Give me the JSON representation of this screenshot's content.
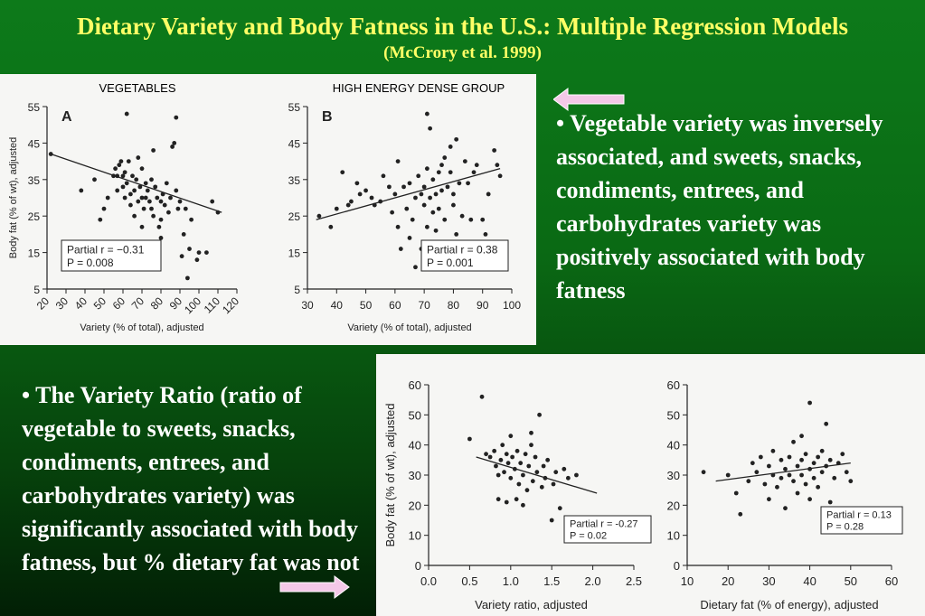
{
  "header": {
    "title": "Dietary Variety and Body Fatness in the U.S.: Multiple Regression Models",
    "subtitle": "(McCrory et al. 1999)"
  },
  "bullets": {
    "vegetable": "• Vegetable variety was inversely associated, and sweets, snacks, condiments, entrees, and carbohydrates variety was positively associated with body fatness",
    "ratio": "• The Variety Ratio (ratio of vegetable to sweets, snacks, condiments, entrees, and carbohydrates variety) was significantly associated with body fatness, but % dietary fat was not"
  },
  "colors": {
    "title": "#ffff66",
    "arrow": "#f4c8e8",
    "text": "#ffffff"
  },
  "chart_data": [
    {
      "id": "A",
      "type": "scatter",
      "title": "VEGETABLES",
      "panel_letter": "A",
      "xlabel": "Variety (% of total), adjusted",
      "ylabel": "Body fat (% of wt), adjusted",
      "xlim": [
        20,
        120
      ],
      "ylim": [
        5,
        55
      ],
      "xticks": [
        20,
        30,
        40,
        50,
        60,
        70,
        80,
        90,
        100,
        110,
        120
      ],
      "yticks": [
        5,
        15,
        25,
        35,
        45,
        55
      ],
      "annotation": {
        "r_label": "Partial r = −0.31",
        "p_label": "P = 0.008"
      },
      "line": [
        [
          22,
          42
        ],
        [
          112,
          26
        ]
      ],
      "points": [
        [
          22,
          42
        ],
        [
          38,
          32
        ],
        [
          45,
          35
        ],
        [
          48,
          24
        ],
        [
          50,
          27
        ],
        [
          52,
          30
        ],
        [
          55,
          36
        ],
        [
          56,
          38
        ],
        [
          57,
          32
        ],
        [
          57,
          36
        ],
        [
          58,
          39
        ],
        [
          59,
          40
        ],
        [
          60,
          36
        ],
        [
          60,
          33
        ],
        [
          61,
          30
        ],
        [
          61,
          37
        ],
        [
          62,
          34
        ],
        [
          63,
          40
        ],
        [
          64,
          31
        ],
        [
          64,
          28
        ],
        [
          65,
          36
        ],
        [
          66,
          32
        ],
        [
          66,
          25
        ],
        [
          67,
          35
        ],
        [
          68,
          41
        ],
        [
          68,
          29
        ],
        [
          69,
          33
        ],
        [
          70,
          30
        ],
        [
          70,
          38
        ],
        [
          71,
          27
        ],
        [
          72,
          34
        ],
        [
          72,
          30
        ],
        [
          73,
          32
        ],
        [
          74,
          29
        ],
        [
          75,
          35
        ],
        [
          75,
          27
        ],
        [
          76,
          25
        ],
        [
          77,
          33
        ],
        [
          78,
          30
        ],
        [
          79,
          22
        ],
        [
          80,
          29
        ],
        [
          80,
          24
        ],
        [
          81,
          31
        ],
        [
          82,
          28
        ],
        [
          83,
          34
        ],
        [
          84,
          26
        ],
        [
          85,
          30
        ],
        [
          86,
          44
        ],
        [
          87,
          45
        ],
        [
          88,
          32
        ],
        [
          89,
          27
        ],
        [
          90,
          29
        ],
        [
          91,
          14
        ],
        [
          92,
          20
        ],
        [
          93,
          27
        ],
        [
          94,
          8
        ],
        [
          95,
          16
        ],
        [
          96,
          24
        ],
        [
          99,
          13
        ],
        [
          100,
          15
        ],
        [
          104,
          15
        ],
        [
          107,
          29
        ],
        [
          110,
          26
        ],
        [
          62,
          53
        ],
        [
          88,
          52
        ],
        [
          76,
          43
        ],
        [
          70,
          22
        ],
        [
          80,
          19
        ]
      ]
    },
    {
      "id": "B",
      "type": "scatter",
      "title": "HIGH ENERGY DENSE GROUP",
      "panel_letter": "B",
      "xlabel": "Variety (% of total), adjusted",
      "ylabel": "",
      "xlim": [
        30,
        100
      ],
      "ylim": [
        5,
        55
      ],
      "xticks": [
        30,
        40,
        50,
        60,
        70,
        80,
        90,
        100
      ],
      "yticks": [
        5,
        15,
        25,
        35,
        45,
        55
      ],
      "annotation": {
        "r_label": "Partial r = 0.38",
        "p_label": "P = 0.001"
      },
      "line": [
        [
          33,
          24
        ],
        [
          96,
          38
        ]
      ],
      "points": [
        [
          34,
          25
        ],
        [
          38,
          22
        ],
        [
          40,
          27
        ],
        [
          42,
          37
        ],
        [
          44,
          28
        ],
        [
          45,
          29
        ],
        [
          47,
          34
        ],
        [
          48,
          31
        ],
        [
          50,
          32
        ],
        [
          52,
          30
        ],
        [
          53,
          28
        ],
        [
          55,
          29
        ],
        [
          56,
          36
        ],
        [
          58,
          33
        ],
        [
          59,
          26
        ],
        [
          60,
          31
        ],
        [
          61,
          40
        ],
        [
          61,
          22
        ],
        [
          62,
          16
        ],
        [
          63,
          33
        ],
        [
          64,
          27
        ],
        [
          65,
          34
        ],
        [
          65,
          19
        ],
        [
          66,
          24
        ],
        [
          67,
          30
        ],
        [
          67,
          11
        ],
        [
          68,
          36
        ],
        [
          69,
          31
        ],
        [
          69,
          16
        ],
        [
          70,
          28
        ],
        [
          70,
          33
        ],
        [
          71,
          22
        ],
        [
          71,
          38
        ],
        [
          72,
          30
        ],
        [
          72,
          49
        ],
        [
          73,
          35
        ],
        [
          73,
          26
        ],
        [
          74,
          31
        ],
        [
          74,
          21
        ],
        [
          75,
          37
        ],
        [
          75,
          27
        ],
        [
          76,
          32
        ],
        [
          76,
          39
        ],
        [
          77,
          24
        ],
        [
          77,
          41
        ],
        [
          78,
          33
        ],
        [
          78,
          17
        ],
        [
          79,
          44
        ],
        [
          79,
          37
        ],
        [
          80,
          28
        ],
        [
          80,
          31
        ],
        [
          81,
          46
        ],
        [
          81,
          20
        ],
        [
          82,
          34
        ],
        [
          83,
          25
        ],
        [
          84,
          40
        ],
        [
          85,
          34
        ],
        [
          86,
          24
        ],
        [
          87,
          37
        ],
        [
          88,
          14
        ],
        [
          88,
          39
        ],
        [
          90,
          24
        ],
        [
          91,
          20
        ],
        [
          92,
          31
        ],
        [
          94,
          43
        ],
        [
          95,
          39
        ],
        [
          96,
          36
        ],
        [
          71,
          53
        ]
      ]
    },
    {
      "id": "ratio",
      "type": "scatter",
      "xlabel": "Variety ratio, adjusted",
      "ylabel": "Body fat (% of wt), adjusted",
      "xlim": [
        0.0,
        2.5
      ],
      "ylim": [
        0,
        60
      ],
      "xticks": [
        "0.0",
        "0.5",
        "1.0",
        "1.5",
        "2.0",
        "2.5"
      ],
      "yticks": [
        0,
        10,
        20,
        30,
        40,
        50,
        60
      ],
      "annotation": {
        "r_label": "Partial r = -0.27",
        "p_label": "P = 0.02"
      },
      "line": [
        [
          0.58,
          36
        ],
        [
          2.05,
          24
        ]
      ],
      "points": [
        [
          0.5,
          42
        ],
        [
          0.65,
          56
        ],
        [
          0.7,
          37
        ],
        [
          0.75,
          36
        ],
        [
          0.8,
          38
        ],
        [
          0.82,
          33
        ],
        [
          0.85,
          30
        ],
        [
          0.88,
          35
        ],
        [
          0.9,
          40
        ],
        [
          0.92,
          31
        ],
        [
          0.95,
          37
        ],
        [
          0.97,
          34
        ],
        [
          1.0,
          43
        ],
        [
          1.0,
          29
        ],
        [
          1.02,
          36
        ],
        [
          1.05,
          32
        ],
        [
          1.07,
          22
        ],
        [
          1.08,
          38
        ],
        [
          1.1,
          27
        ],
        [
          1.12,
          34
        ],
        [
          1.15,
          30
        ],
        [
          1.18,
          37
        ],
        [
          1.2,
          25
        ],
        [
          1.22,
          33
        ],
        [
          1.25,
          40
        ],
        [
          1.27,
          28
        ],
        [
          1.3,
          36
        ],
        [
          1.32,
          31
        ],
        [
          1.35,
          50
        ],
        [
          1.38,
          26
        ],
        [
          1.4,
          33
        ],
        [
          1.42,
          29
        ],
        [
          1.45,
          35
        ],
        [
          1.5,
          15
        ],
        [
          1.52,
          27
        ],
        [
          1.55,
          31
        ],
        [
          1.6,
          19
        ],
        [
          1.65,
          32
        ],
        [
          1.7,
          29
        ],
        [
          1.75,
          13
        ],
        [
          1.8,
          30
        ],
        [
          0.95,
          21
        ],
        [
          1.15,
          20
        ],
        [
          0.85,
          22
        ],
        [
          1.25,
          44
        ]
      ]
    },
    {
      "id": "fat",
      "type": "scatter",
      "xlabel": "Dietary fat (% of energy), adjusted",
      "ylabel": "",
      "xlim": [
        10,
        60
      ],
      "ylim": [
        0,
        60
      ],
      "xticks": [
        10,
        20,
        30,
        40,
        50,
        60
      ],
      "yticks": [
        0,
        10,
        20,
        30,
        40,
        50,
        60
      ],
      "annotation": {
        "r_label": "Partial r = 0.13",
        "p_label": "P = 0.28"
      },
      "line": [
        [
          17,
          28
        ],
        [
          50,
          34
        ]
      ],
      "points": [
        [
          14,
          31
        ],
        [
          20,
          30
        ],
        [
          22,
          24
        ],
        [
          23,
          17
        ],
        [
          25,
          28
        ],
        [
          26,
          34
        ],
        [
          27,
          31
        ],
        [
          28,
          36
        ],
        [
          29,
          27
        ],
        [
          30,
          33
        ],
        [
          30,
          22
        ],
        [
          31,
          30
        ],
        [
          31,
          38
        ],
        [
          32,
          26
        ],
        [
          33,
          35
        ],
        [
          33,
          29
        ],
        [
          34,
          32
        ],
        [
          34,
          19
        ],
        [
          35,
          36
        ],
        [
          35,
          30
        ],
        [
          36,
          28
        ],
        [
          36,
          41
        ],
        [
          37,
          33
        ],
        [
          37,
          24
        ],
        [
          38,
          35
        ],
        [
          38,
          30
        ],
        [
          39,
          37
        ],
        [
          39,
          27
        ],
        [
          40,
          32
        ],
        [
          40,
          22
        ],
        [
          41,
          34
        ],
        [
          41,
          29
        ],
        [
          42,
          36
        ],
        [
          42,
          26
        ],
        [
          43,
          31
        ],
        [
          43,
          38
        ],
        [
          44,
          33
        ],
        [
          45,
          21
        ],
        [
          45,
          35
        ],
        [
          46,
          29
        ],
        [
          47,
          34
        ],
        [
          48,
          37
        ],
        [
          49,
          31
        ],
        [
          50,
          28
        ],
        [
          40,
          54
        ],
        [
          44,
          47
        ],
        [
          38,
          43
        ]
      ]
    }
  ]
}
